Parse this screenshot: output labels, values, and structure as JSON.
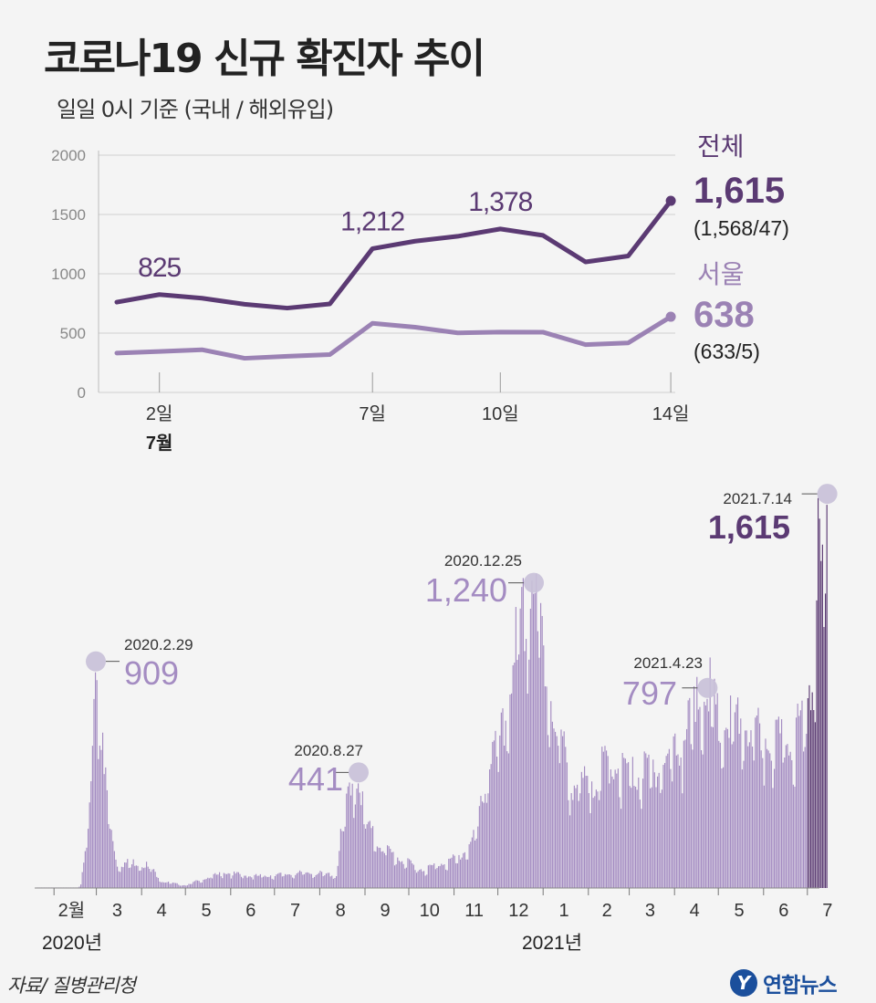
{
  "title": "코로나19 신규 확진자 추이",
  "subtitle": "일일 0시 기준 (국내 / 해외유입)",
  "source": "자료/ 질병관리청",
  "brand": "연합뉴스",
  "brand_logo_icon": "yonhap-logo-icon",
  "colors": {
    "total": "#5b3a73",
    "seoul": "#9b82b4",
    "bar": "#a48cc2",
    "bar_recent": "#5b3a73",
    "marker": "#c8c0d8"
  },
  "chart_data": [
    {
      "type": "line",
      "xlabels": [
        "2일",
        "7일",
        "10일",
        "14일"
      ],
      "month_label": "7월",
      "ylim": [
        0,
        2000
      ],
      "yticks": [
        0,
        500,
        1000,
        1500,
        2000
      ],
      "x": [
        1,
        2,
        3,
        4,
        5,
        6,
        7,
        8,
        9,
        10,
        11,
        12,
        13,
        14
      ],
      "series": [
        {
          "name": "전체",
          "values": [
            761,
            825,
            794,
            743,
            711,
            746,
            1212,
            1275,
            1316,
            1378,
            1324,
            1100,
            1150,
            1615
          ],
          "latest_value": "1,615",
          "latest_breakdown": "(1,568/47)"
        },
        {
          "name": "서울",
          "values": [
            332,
            345,
            360,
            288,
            305,
            319,
            583,
            550,
            502,
            509,
            508,
            403,
            417,
            638
          ],
          "latest_value": "638",
          "latest_breakdown": "(633/5)"
        }
      ],
      "annotations": [
        {
          "x": 2,
          "label": "825"
        },
        {
          "x": 7,
          "label": "1,212"
        },
        {
          "x": 10,
          "label": "1,378"
        }
      ]
    },
    {
      "type": "bar",
      "month_labels": [
        "2월",
        "3",
        "4",
        "5",
        "6",
        "7",
        "8",
        "9",
        "10",
        "11",
        "12",
        "1",
        "2",
        "3",
        "4",
        "5",
        "6",
        "7"
      ],
      "year_labels": [
        "2020년",
        "2021년"
      ],
      "annotations": [
        {
          "date": "2020.2.29",
          "value": "909"
        },
        {
          "date": "2020.8.27",
          "value": "441"
        },
        {
          "date": "2020.12.25",
          "value": "1,240"
        },
        {
          "date": "2021.4.23",
          "value": "797"
        },
        {
          "date": "2021.7.14",
          "value": "1,615"
        }
      ],
      "keypoints": [
        [
          "2020-01-20",
          0
        ],
        [
          "2020-02-17",
          0
        ],
        [
          "2020-02-19",
          15
        ],
        [
          "2020-02-23",
          170
        ],
        [
          "2020-02-26",
          450
        ],
        [
          "2020-02-29",
          909
        ],
        [
          "2020-03-03",
          600
        ],
        [
          "2020-03-06",
          480
        ],
        [
          "2020-03-10",
          250
        ],
        [
          "2020-03-15",
          90
        ],
        [
          "2020-03-25",
          100
        ],
        [
          "2020-04-05",
          90
        ],
        [
          "2020-04-15",
          25
        ],
        [
          "2020-05-01",
          10
        ],
        [
          "2020-05-10",
          30
        ],
        [
          "2020-05-28",
          60
        ],
        [
          "2020-06-15",
          45
        ],
        [
          "2020-07-01",
          50
        ],
        [
          "2020-07-25",
          60
        ],
        [
          "2020-08-12",
          50
        ],
        [
          "2020-08-16",
          240
        ],
        [
          "2020-08-22",
          390
        ],
        [
          "2020-08-27",
          441
        ],
        [
          "2020-09-01",
          250
        ],
        [
          "2020-09-10",
          170
        ],
        [
          "2020-09-25",
          110
        ],
        [
          "2020-10-10",
          70
        ],
        [
          "2020-10-25",
          100
        ],
        [
          "2020-11-05",
          120
        ],
        [
          "2020-11-15",
          200
        ],
        [
          "2020-11-25",
          500
        ],
        [
          "2020-12-05",
          600
        ],
        [
          "2020-12-12",
          950
        ],
        [
          "2020-12-20",
          1050
        ],
        [
          "2020-12-25",
          1240
        ],
        [
          "2021-01-02",
          850
        ],
        [
          "2021-01-10",
          640
        ],
        [
          "2021-01-20",
          400
        ],
        [
          "2021-02-01",
          400
        ],
        [
          "2021-02-16",
          500
        ],
        [
          "2021-03-01",
          430
        ],
        [
          "2021-03-20",
          470
        ],
        [
          "2021-04-05",
          550
        ],
        [
          "2021-04-15",
          700
        ],
        [
          "2021-04-23",
          797
        ],
        [
          "2021-05-01",
          620
        ],
        [
          "2021-05-15",
          650
        ],
        [
          "2021-05-30",
          580
        ],
        [
          "2021-06-15",
          550
        ],
        [
          "2021-06-30",
          650
        ],
        [
          "2021-07-01",
          800
        ],
        [
          "2021-07-05",
          750
        ],
        [
          "2021-07-07",
          1212
        ],
        [
          "2021-07-10",
          1378
        ],
        [
          "2021-07-12",
          1100
        ],
        [
          "2021-07-14",
          1615
        ]
      ]
    }
  ]
}
